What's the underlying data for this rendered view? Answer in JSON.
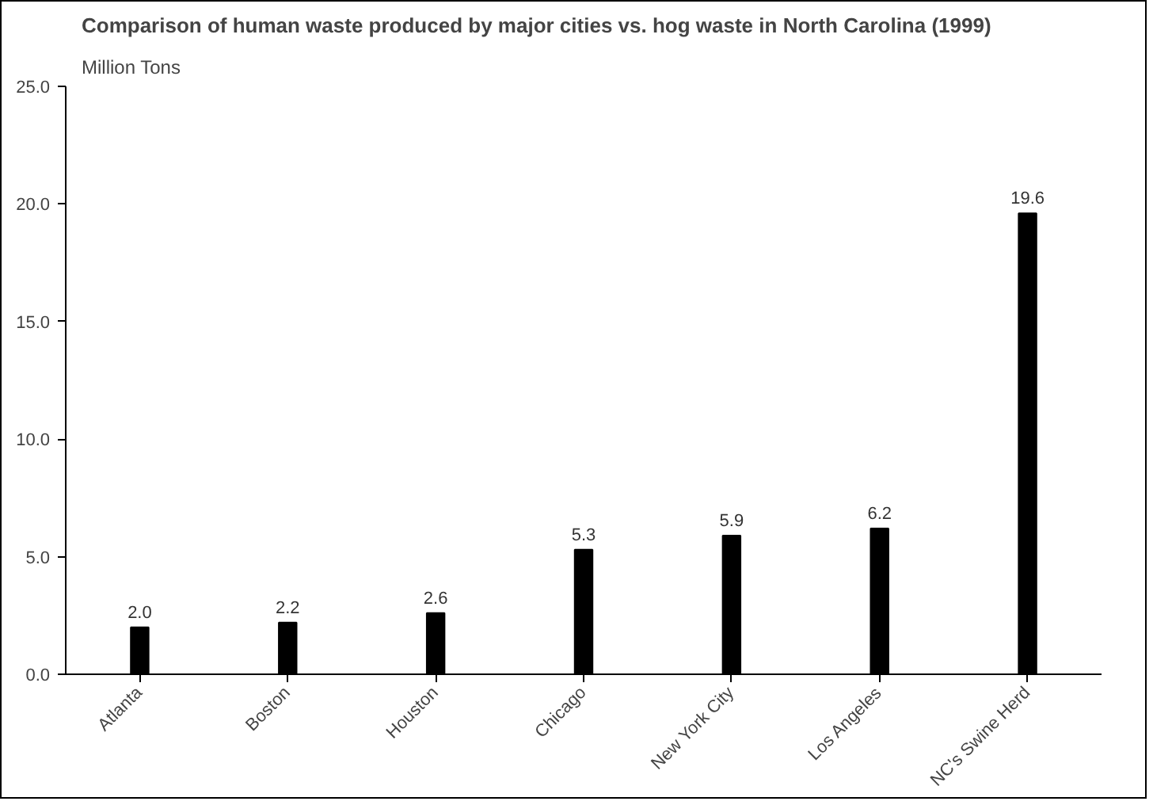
{
  "chart_data": {
    "type": "bar",
    "title": "Comparison of human waste produced by major cities vs. hog waste in North Carolina (1999)",
    "ylabel": "Million Tons",
    "categories": [
      "Atlanta",
      "Boston",
      "Houston",
      "Chicago",
      "New York City",
      "Los Angeles",
      "NC's Swine Herd"
    ],
    "values": [
      2.0,
      2.2,
      2.6,
      5.3,
      5.9,
      6.2,
      19.6
    ],
    "color": "#000000",
    "ylim": [
      0,
      25
    ],
    "yticks": [
      {
        "value": 0,
        "label": "0.0"
      },
      {
        "value": 5,
        "label": "5.0"
      },
      {
        "value": 10,
        "label": "10.0"
      },
      {
        "value": 15,
        "label": "15.0"
      },
      {
        "value": 20,
        "label": "20.0"
      },
      {
        "value": 25,
        "label": "25.0"
      }
    ],
    "value_labels": [
      "2.0",
      "2.2",
      "2.6",
      "5.3",
      "5.9",
      "6.2",
      "19.6"
    ],
    "grid": false
  }
}
